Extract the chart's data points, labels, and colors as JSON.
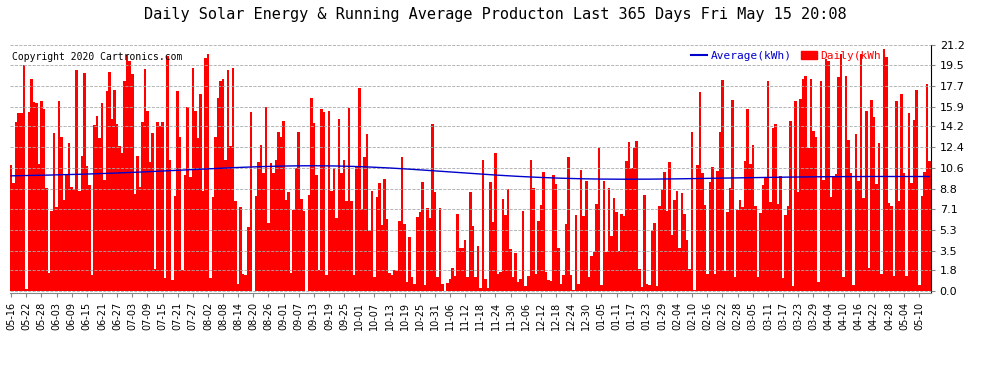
{
  "title": "Daily Solar Energy & Running Average Producton Last 365 Days Fri May 15 20:08",
  "copyright": "Copyright 2020 Cartronics.com",
  "legend_avg": "Average(kWh)",
  "legend_daily": "Daily(kWh)",
  "yticks": [
    0.0,
    1.8,
    3.5,
    5.3,
    7.1,
    8.8,
    10.6,
    12.4,
    14.2,
    15.9,
    17.7,
    19.5,
    21.2
  ],
  "ymax": 21.2,
  "ymin": 0.0,
  "bar_color": "#ff0000",
  "avg_line_color": "#0000cd",
  "grid_color": "#aaaaaa",
  "background_color": "#ffffff",
  "plot_bg_color": "#ffffff",
  "title_fontsize": 11,
  "copyright_fontsize": 7,
  "tick_fontsize": 7,
  "ytick_fontsize": 8,
  "n_bars": 365,
  "x_tick_labels": [
    "05-16",
    "05-22",
    "05-28",
    "06-03",
    "06-09",
    "06-15",
    "06-21",
    "06-27",
    "07-03",
    "07-09",
    "07-15",
    "07-21",
    "07-27",
    "08-02",
    "08-08",
    "08-14",
    "08-20",
    "08-26",
    "09-01",
    "09-07",
    "09-13",
    "09-19",
    "09-25",
    "10-01",
    "10-07",
    "10-13",
    "10-19",
    "10-25",
    "10-31",
    "11-06",
    "11-12",
    "11-18",
    "11-24",
    "11-30",
    "12-06",
    "12-12",
    "12-18",
    "12-24",
    "12-30",
    "01-05",
    "01-11",
    "01-17",
    "01-23",
    "01-29",
    "02-04",
    "02-10",
    "02-16",
    "02-22",
    "02-28",
    "03-05",
    "03-11",
    "03-17",
    "03-23",
    "03-29",
    "04-04",
    "04-10",
    "04-16",
    "04-22",
    "04-28",
    "05-04",
    "05-10"
  ]
}
